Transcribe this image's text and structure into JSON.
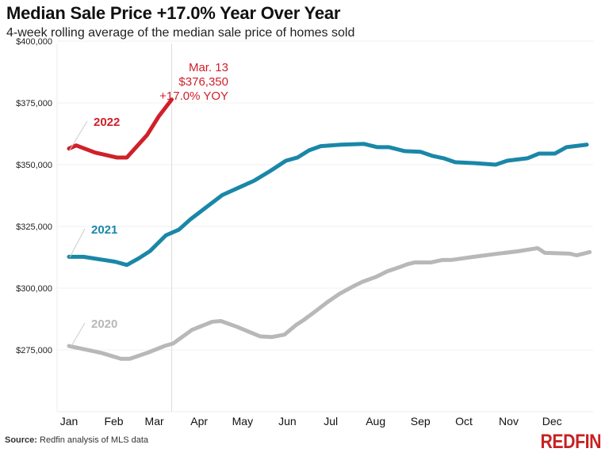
{
  "title": "Median Sale Price +17.0% Year Over Year",
  "subtitle": "4-week rolling average of the median sale price of homes sold",
  "source_label": "Source:",
  "source_text": "Redfin analysis of MLS data",
  "logo": "REDFIN",
  "chart_data": {
    "type": "line",
    "title": "Median Sale Price +17.0% Year Over Year",
    "xlabel": "",
    "ylabel": "",
    "ylim": [
      250000,
      400000
    ],
    "yticks": [
      275000,
      300000,
      325000,
      350000,
      375000,
      400000
    ],
    "ytick_labels": [
      "$275,000",
      "$300,000",
      "$325,000",
      "$350,000",
      "$375,000",
      "$400,000"
    ],
    "xtick_labels": [
      "Jan",
      "Feb",
      "Mar",
      "Apr",
      "May",
      "Jun",
      "Jul",
      "Aug",
      "Sep",
      "Oct",
      "Nov",
      "Dec"
    ],
    "grid": "horizontal",
    "legend": "inline labels",
    "series": [
      {
        "name": "2020",
        "color": "#b8b8b8",
        "x": [
          "01-01",
          "01-24",
          "02-06",
          "02-12",
          "02-25",
          "03-08",
          "03-14",
          "03-27",
          "04-10",
          "04-16",
          "04-27",
          "05-13",
          "05-21",
          "05-30",
          "06-07",
          "06-12",
          "06-21",
          "06-29",
          "07-07",
          "07-16",
          "07-23",
          "08-01",
          "08-09",
          "08-17",
          "08-23",
          "08-28",
          "09-08",
          "09-16",
          "09-22",
          "10-08",
          "10-25",
          "11-07",
          "11-21",
          "11-26",
          "12-13",
          "12-18",
          "12-27"
        ],
        "values": [
          276600,
          273700,
          271400,
          271400,
          274000,
          276600,
          277600,
          283100,
          286400,
          286700,
          284400,
          280500,
          280200,
          281200,
          285100,
          287000,
          290900,
          294500,
          297700,
          300600,
          302600,
          304500,
          306800,
          308400,
          309700,
          310400,
          310400,
          311400,
          311400,
          312700,
          314000,
          314900,
          316200,
          314300,
          314000,
          313300,
          314600
        ]
      },
      {
        "name": "2021",
        "color": "#1a87a8",
        "x": [
          "01-01",
          "01-11",
          "01-22",
          "02-02",
          "02-10",
          "02-18",
          "02-26",
          "03-09",
          "03-18",
          "03-26",
          "04-06",
          "04-17",
          "04-28",
          "05-09",
          "05-20",
          "05-31",
          "06-08",
          "06-16",
          "06-24",
          "07-08",
          "07-24",
          "08-02",
          "08-10",
          "08-21",
          "09-01",
          "09-09",
          "09-17",
          "09-25",
          "10-09",
          "10-23",
          "10-31",
          "11-14",
          "11-22",
          "12-03",
          "12-11",
          "12-25"
        ],
        "values": [
          312700,
          312700,
          311700,
          310700,
          309400,
          312000,
          315000,
          321400,
          323700,
          327900,
          332800,
          337700,
          340600,
          343500,
          347400,
          351600,
          352900,
          355800,
          357500,
          358100,
          358400,
          357100,
          357100,
          355500,
          355200,
          353600,
          352600,
          351000,
          350600,
          350000,
          351600,
          352600,
          354500,
          354500,
          357100,
          358100
        ]
      },
      {
        "name": "2022",
        "color": "#d0202a",
        "x": [
          "01-01",
          "01-06",
          "01-19",
          "02-03",
          "02-10",
          "02-24",
          "03-04",
          "03-13"
        ],
        "values": [
          356500,
          357800,
          354900,
          352900,
          352900,
          362000,
          369500,
          376350
        ]
      }
    ],
    "annotation": {
      "date": "Mar. 13",
      "value": "$376,350",
      "change": "+17.0% YOY"
    }
  }
}
